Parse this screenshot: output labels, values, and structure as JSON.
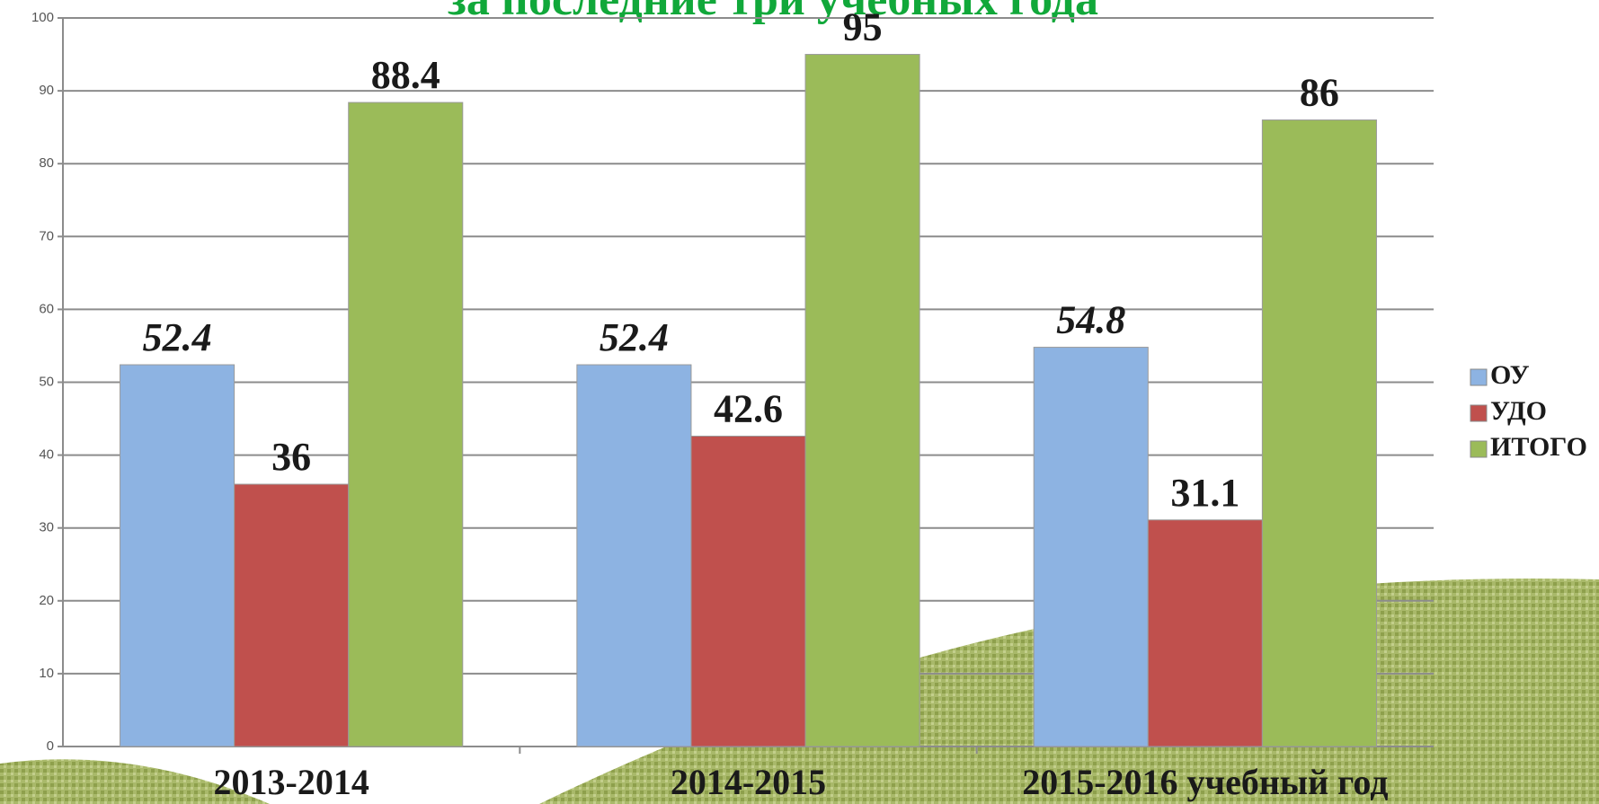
{
  "chart_data": {
    "type": "bar",
    "title": "за последние три учебных года",
    "categories": [
      "2013-2014",
      "2014-2015",
      "2015-2016 учебный год"
    ],
    "series": [
      {
        "name": "ОУ",
        "color": "#8db3e2",
        "values": [
          52.4,
          52.4,
          54.8
        ]
      },
      {
        "name": "УДО",
        "color": "#c0504d",
        "values": [
          36,
          42.6,
          31.1
        ]
      },
      {
        "name": "ИТОГО",
        "color": "#9bbb59",
        "values": [
          88.4,
          95,
          86
        ]
      }
    ],
    "ylim": [
      0,
      100
    ],
    "yticks": [
      0,
      10,
      20,
      30,
      40,
      50,
      60,
      70,
      80,
      90,
      100
    ],
    "grid": true,
    "legend": "right"
  }
}
